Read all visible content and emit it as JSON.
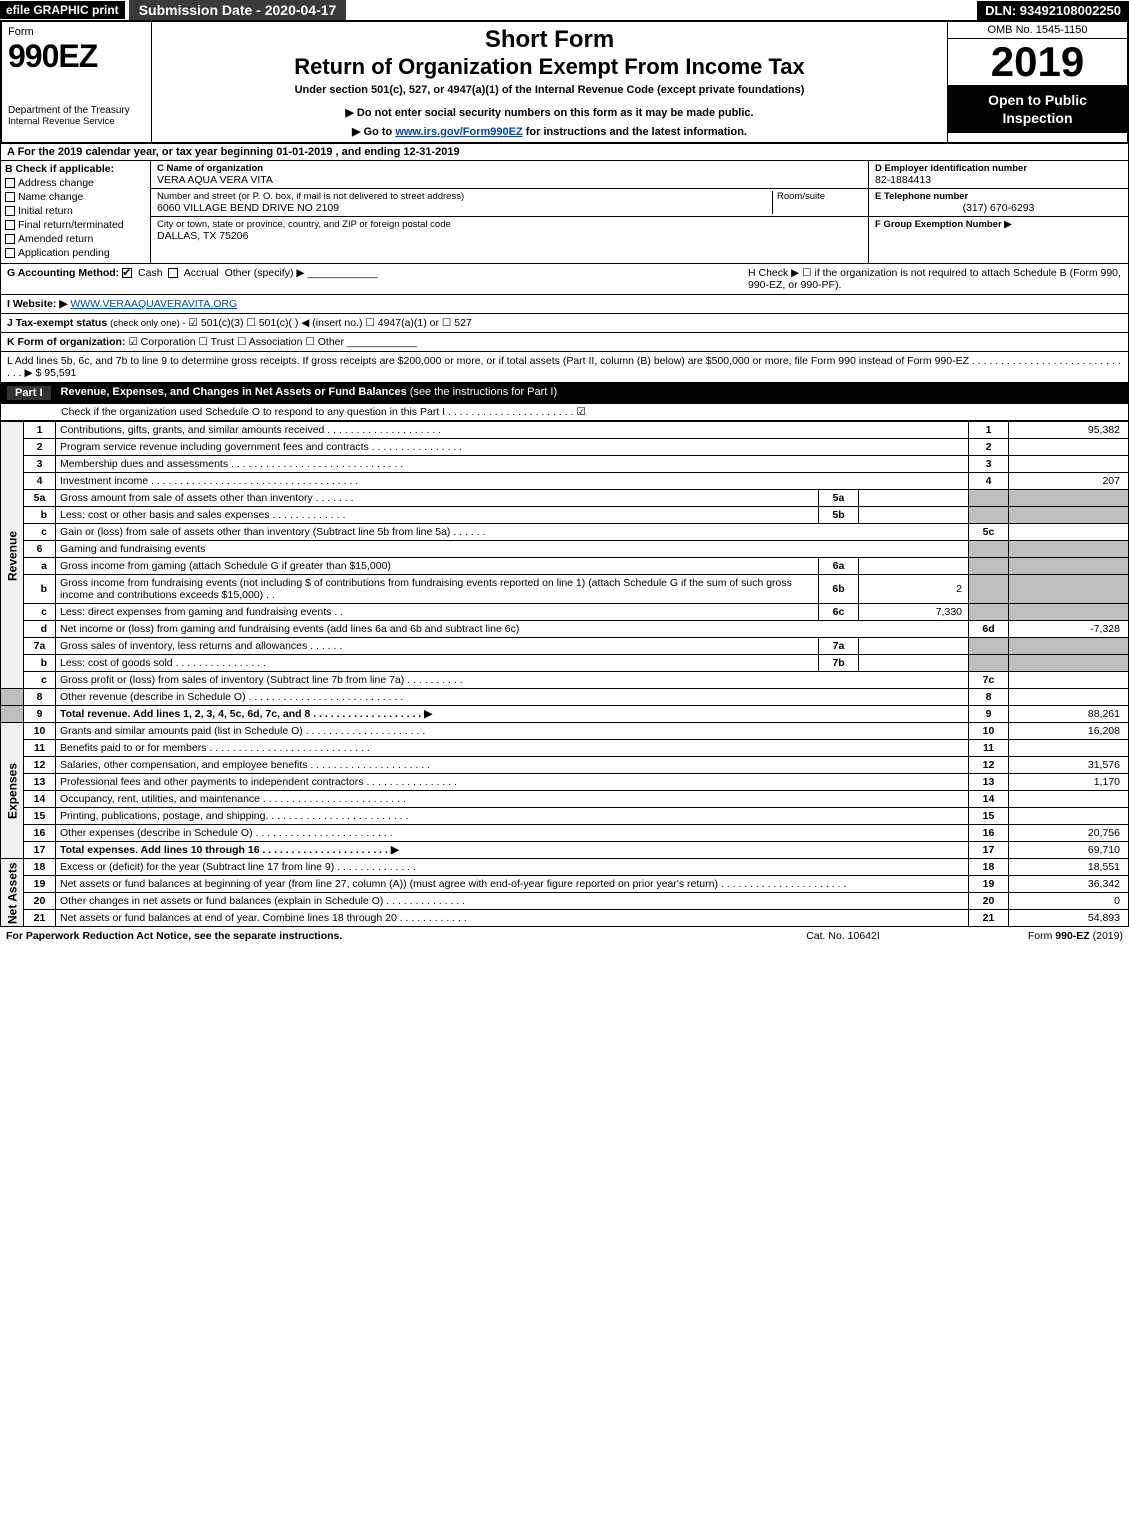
{
  "topbar": {
    "efile": "efile GRAPHIC print",
    "subdate": "Submission Date - 2020-04-17",
    "dln": "DLN: 93492108002250"
  },
  "header": {
    "form_word": "Form",
    "form_no": "990EZ",
    "dept": "Department of the Treasury",
    "irs": "Internal Revenue Service",
    "short_form": "Short Form",
    "return_title": "Return of Organization Exempt From Income Tax",
    "under_section": "Under section 501(c), 527, or 4947(a)(1) of the Internal Revenue Code (except private foundations)",
    "do_not": "▶ Do not enter social security numbers on this form as it may be made public.",
    "goto_pre": "▶ Go to ",
    "goto_link": "www.irs.gov/Form990EZ",
    "goto_post": " for instructions and the latest information.",
    "omb": "OMB No. 1545-1150",
    "year": "2019",
    "inspection": "Open to Public Inspection"
  },
  "period": "A For the 2019 calendar year, or tax year beginning 01-01-2019 , and ending 12-31-2019",
  "colB": {
    "title": "B Check if applicable:",
    "items": [
      "Address change",
      "Name change",
      "Initial return",
      "Final return/terminated",
      "Amended return",
      "Application pending"
    ]
  },
  "colC": {
    "name_label": "C Name of organization",
    "name": "VERA AQUA VERA VITA",
    "addr_label": "Number and street (or P. O. box, if mail is not delivered to street address)",
    "addr": "6060 VILLAGE BEND DRIVE NO 2109",
    "room_label": "Room/suite",
    "city_label": "City or town, state or province, country, and ZIP or foreign postal code",
    "city": "DALLAS, TX  75206"
  },
  "colD": {
    "label": "D Employer identification number",
    "value": "82-1884413"
  },
  "colE": {
    "label": "E Telephone number",
    "value": "(317) 670-6293"
  },
  "colF": {
    "label": "F Group Exemption Number  ▶"
  },
  "rowG": {
    "label": "G Accounting Method:",
    "cash": "Cash",
    "accrual": "Accrual",
    "other": "Other (specify) ▶"
  },
  "rowH": {
    "text": "H  Check ▶  ☐  if the organization is not required to attach Schedule B (Form 990, 990-EZ, or 990-PF)."
  },
  "rowI": {
    "label": "I Website: ▶",
    "value": "WWW.VERAAQUAVERAVITA.ORG"
  },
  "rowJ": {
    "label": "J Tax-exempt status",
    "small": "(check only one) -",
    "opts": "☑ 501(c)(3)  ☐ 501(c)( ) ◀ (insert no.)  ☐ 4947(a)(1) or  ☐ 527"
  },
  "rowK": {
    "label": "K Form of organization:",
    "opts": "☑ Corporation   ☐ Trust   ☐ Association   ☐ Other"
  },
  "rowL": {
    "text": "L Add lines 5b, 6c, and 7b to line 9 to determine gross receipts. If gross receipts are $200,000 or more, or if total assets (Part II, column (B) below) are $500,000 or more, file Form 990 instead of Form 990-EZ  . . . . . . . . . . . . . . . . . . . . . . . . . . . . .  ▶ $ 95,591"
  },
  "part1": {
    "label": "Part I",
    "title": "Revenue, Expenses, and Changes in Net Assets or Fund Balances",
    "sub": "(see the instructions for Part I)",
    "check_row": "Check if the organization used Schedule O to respond to any question in this Part I . . . . . . . . . . . . . . . . . . . . . .  ☑"
  },
  "sides": {
    "revenue": "Revenue",
    "expenses": "Expenses",
    "netassets": "Net Assets"
  },
  "lines": {
    "l1": {
      "n": "1",
      "d": "Contributions, gifts, grants, and similar amounts received . . . . . . . . . . . . . . . . . . . .",
      "en": "1",
      "ev": "95,382"
    },
    "l2": {
      "n": "2",
      "d": "Program service revenue including government fees and contracts . . . . . . . . . . . . . . . .",
      "en": "2",
      "ev": ""
    },
    "l3": {
      "n": "3",
      "d": "Membership dues and assessments . . . . . . . . . . . . . . . . . . . . . . . . . . . . . .",
      "en": "3",
      "ev": ""
    },
    "l4": {
      "n": "4",
      "d": "Investment income . . . . . . . . . . . . . . . . . . . . . . . . . . . . . . . . . . . .",
      "en": "4",
      "ev": "207"
    },
    "l5a": {
      "n": "5a",
      "d": "Gross amount from sale of assets other than inventory . . . . . . .",
      "mn": "5a",
      "mv": ""
    },
    "l5b": {
      "n": "b",
      "d": "Less: cost or other basis and sales expenses . . . . . . . . . . . . .",
      "mn": "5b",
      "mv": ""
    },
    "l5c": {
      "n": "c",
      "d": "Gain or (loss) from sale of assets other than inventory (Subtract line 5b from line 5a) . . . . . .",
      "en": "5c",
      "ev": ""
    },
    "l6": {
      "n": "6",
      "d": "Gaming and fundraising events"
    },
    "l6a": {
      "n": "a",
      "d": "Gross income from gaming (attach Schedule G if greater than $15,000)",
      "mn": "6a",
      "mv": ""
    },
    "l6b": {
      "n": "b",
      "d": "Gross income from fundraising events (not including $                          of contributions from fundraising events reported on line 1) (attach Schedule G if the sum of such gross income and contributions exceeds $15,000)   . .",
      "mn": "6b",
      "mv": "2"
    },
    "l6c": {
      "n": "c",
      "d": "Less: direct expenses from gaming and fundraising events       . .",
      "mn": "6c",
      "mv": "7,330"
    },
    "l6d": {
      "n": "d",
      "d": "Net income or (loss) from gaming and fundraising events (add lines 6a and 6b and subtract line 6c)",
      "en": "6d",
      "ev": "-7,328"
    },
    "l7a": {
      "n": "7a",
      "d": "Gross sales of inventory, less returns and allowances . . . . . .",
      "mn": "7a",
      "mv": ""
    },
    "l7b": {
      "n": "b",
      "d": "Less: cost of goods sold         . . . . . . . . . . . . . . . .",
      "mn": "7b",
      "mv": ""
    },
    "l7c": {
      "n": "c",
      "d": "Gross profit or (loss) from sales of inventory (Subtract line 7b from line 7a) . . . . . . . . . .",
      "en": "7c",
      "ev": ""
    },
    "l8": {
      "n": "8",
      "d": "Other revenue (describe in Schedule O) . . . . . . . . . . . . . . . . . . . . . . . . . . .",
      "en": "8",
      "ev": ""
    },
    "l9": {
      "n": "9",
      "d": "Total revenue. Add lines 1, 2, 3, 4, 5c, 6d, 7c, and 8 . . . . . . . . . . . . . . . . . . .   ▶",
      "en": "9",
      "ev": "88,261",
      "bold": true
    },
    "l10": {
      "n": "10",
      "d": "Grants and similar amounts paid (list in Schedule O) . . . . . . . . . . . . . . . . . . . . .",
      "en": "10",
      "ev": "16,208"
    },
    "l11": {
      "n": "11",
      "d": "Benefits paid to or for members    . . . . . . . . . . . . . . . . . . . . . . . . . . . .",
      "en": "11",
      "ev": ""
    },
    "l12": {
      "n": "12",
      "d": "Salaries, other compensation, and employee benefits . . . . . . . . . . . . . . . . . . . . .",
      "en": "12",
      "ev": "31,576"
    },
    "l13": {
      "n": "13",
      "d": "Professional fees and other payments to independent contractors . . . . . . . . . . . . . . . .",
      "en": "13",
      "ev": "1,170"
    },
    "l14": {
      "n": "14",
      "d": "Occupancy, rent, utilities, and maintenance . . . . . . . . . . . . . . . . . . . . . . . . .",
      "en": "14",
      "ev": ""
    },
    "l15": {
      "n": "15",
      "d": "Printing, publications, postage, and shipping. . . . . . . . . . . . . . . . . . . . . . . . .",
      "en": "15",
      "ev": ""
    },
    "l16": {
      "n": "16",
      "d": "Other expenses (describe in Schedule O)    . . . . . . . . . . . . . . . . . . . . . . . .",
      "en": "16",
      "ev": "20,756"
    },
    "l17": {
      "n": "17",
      "d": "Total expenses. Add lines 10 through 16    . . . . . . . . . . . . . . . . . . . . . .   ▶",
      "en": "17",
      "ev": "69,710",
      "bold": true
    },
    "l18": {
      "n": "18",
      "d": "Excess or (deficit) for the year (Subtract line 17 from line 9)       . . . . . . . . . . . . . .",
      "en": "18",
      "ev": "18,551"
    },
    "l19": {
      "n": "19",
      "d": "Net assets or fund balances at beginning of year (from line 27, column (A)) (must agree with end-of-year figure reported on prior year's return) . . . . . . . . . . . . . . . . . . . . . .",
      "en": "19",
      "ev": "36,342"
    },
    "l20": {
      "n": "20",
      "d": "Other changes in net assets or fund balances (explain in Schedule O) . . . . . . . . . . . . . .",
      "en": "20",
      "ev": "0"
    },
    "l21": {
      "n": "21",
      "d": "Net assets or fund balances at end of year. Combine lines 18 through 20 . . . . . . . . . . . .",
      "en": "21",
      "ev": "54,893"
    }
  },
  "footer": {
    "left": "For Paperwork Reduction Act Notice, see the separate instructions.",
    "center": "Cat. No. 10642I",
    "right": "Form 990-EZ (2019)"
  },
  "colors": {
    "black": "#000000",
    "darkgray": "#3a3a3a",
    "shaded": "#bfbfbf",
    "link": "#0645ad",
    "lightbg": "#f0f0f0"
  }
}
